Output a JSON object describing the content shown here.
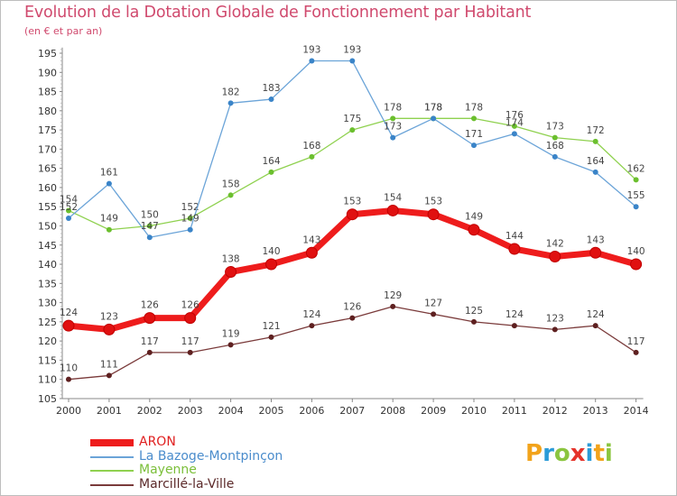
{
  "chart_data": {
    "type": "line",
    "title": "Evolution de la Dotation Globale de Fonctionnement par Habitant",
    "subtitle": "(en € et par an)",
    "categories": [
      "2000",
      "2001",
      "2002",
      "2003",
      "2004",
      "2005",
      "2006",
      "2007",
      "2008",
      "2009",
      "2010",
      "2011",
      "2012",
      "2013",
      "2014"
    ],
    "ylim": [
      105,
      196
    ],
    "yticks": [
      105,
      110,
      115,
      120,
      125,
      130,
      135,
      140,
      145,
      150,
      155,
      160,
      165,
      170,
      175,
      180,
      185,
      190,
      195
    ],
    "grid": false,
    "series": [
      {
        "name": "Mayenne",
        "color": "#8fd14f",
        "marker": "#6bbf2e",
        "values": [
          154,
          149,
          150,
          152,
          158,
          164,
          168,
          175,
          178,
          178,
          178,
          176,
          173,
          172,
          162
        ]
      },
      {
        "name": "La Bazoge-Montpinçon",
        "color": "#6ba4d8",
        "marker": "#3a84c8",
        "values": [
          152,
          161,
          147,
          149,
          182,
          183,
          193,
          193,
          173,
          178,
          171,
          174,
          168,
          164,
          155
        ]
      },
      {
        "name": "Marcillé-la-Ville",
        "color": "#7a3a3a",
        "marker": "#5e2020",
        "values": [
          110,
          111,
          117,
          117,
          119,
          121,
          124,
          126,
          129,
          127,
          125,
          124,
          123,
          124,
          117
        ]
      },
      {
        "name": "ARON",
        "color": "#ee1c1c",
        "marker": "#e01010",
        "values": [
          124,
          123,
          126,
          126,
          138,
          140,
          143,
          153,
          154,
          153,
          149,
          144,
          142,
          143,
          140
        ]
      }
    ],
    "legend_order": [
      "ARON",
      "La Bazoge-Montpinçon",
      "Mayenne",
      "Marcillé-la-Ville"
    ],
    "legend_position": "bottom-left"
  },
  "logo": {
    "text": "Proxiti",
    "letters": [
      "P",
      "r",
      "o",
      "x",
      "i",
      "t",
      "i"
    ],
    "colors": [
      "#f2a31b",
      "#2b9bd8",
      "#8bc53f",
      "#e5332a",
      "#2b9bd8",
      "#f2a31b",
      "#8bc53f"
    ]
  }
}
